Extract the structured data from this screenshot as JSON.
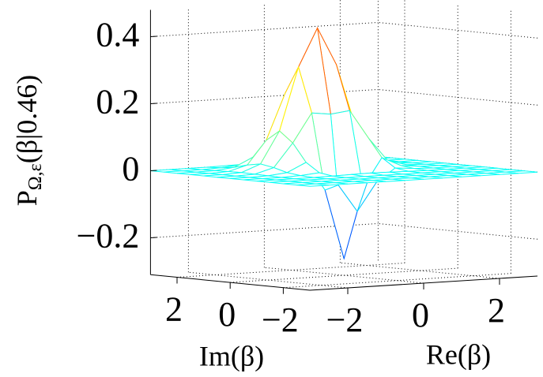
{
  "chart_data": {
    "type": "mesh",
    "colormap": "jet",
    "grid": true,
    "xlabel": "Re(β)",
    "ylabel": "Im(β)",
    "zlabel": {
      "main": "P",
      "sub": "Ω,ε",
      "rest": "(β|0.46)"
    },
    "xlim": [
      -3,
      3
    ],
    "ylim": [
      -3,
      3
    ],
    "zlim": [
      -0.31,
      0.48
    ],
    "xticks": [
      {
        "value": -2,
        "label": "−2"
      },
      0,
      2
    ],
    "yticks": [
      {
        "value": -2,
        "label": "−2"
      },
      0,
      2
    ],
    "zticks": [
      {
        "value": -0.2,
        "label": "−0.2"
      },
      0,
      0.2,
      0.4
    ],
    "x": [
      -3,
      -2.5,
      -2,
      -1.5,
      -1,
      -0.5,
      0,
      0.5,
      1,
      1.5,
      2,
      2.5,
      3
    ],
    "y": [
      -3,
      -2.5,
      -2,
      -1.5,
      -1,
      -0.5,
      0,
      0.5,
      1,
      1.5,
      2,
      2.5,
      3
    ],
    "z": [
      [
        0,
        0,
        0,
        0,
        0,
        0,
        0,
        0,
        0,
        0,
        0,
        0,
        0
      ],
      [
        0,
        0,
        0,
        0,
        0,
        0,
        0,
        0,
        0,
        0,
        0,
        0,
        0
      ],
      [
        0,
        0,
        0,
        0,
        0,
        0,
        0,
        0,
        0,
        0,
        0,
        0,
        0
      ],
      [
        0,
        0,
        0,
        0,
        0,
        0,
        0,
        0,
        0,
        0,
        0,
        0,
        0
      ],
      [
        0,
        0,
        0,
        0,
        0.001,
        0.002,
        0.003,
        0.002,
        0.001,
        0,
        0,
        0,
        0
      ],
      [
        0,
        0,
        0,
        0.002,
        0.007,
        -0.033,
        -0.115,
        -0.033,
        0.007,
        0.002,
        0,
        0,
        0
      ],
      [
        0,
        0,
        0.001,
        0.007,
        0.034,
        -0.052,
        -0.26,
        -0.052,
        0.034,
        0.007,
        0.001,
        0,
        0
      ],
      [
        0,
        0,
        0.002,
        0.018,
        0.088,
        0.174,
        0.167,
        0.174,
        0.088,
        0.018,
        0.002,
        0,
        0
      ],
      [
        0,
        0,
        0.003,
        0.025,
        0.12,
        0.307,
        0.42,
        0.307,
        0.12,
        0.025,
        0.003,
        0,
        0
      ],
      [
        0,
        0,
        0.002,
        0.018,
        0.088,
        0.225,
        0.307,
        0.225,
        0.088,
        0.018,
        0.002,
        0,
        0
      ],
      [
        0,
        0,
        0.001,
        0.007,
        0.034,
        0.088,
        0.12,
        0.088,
        0.034,
        0.007,
        0.001,
        0,
        0
      ],
      [
        0,
        0,
        0,
        0.002,
        0.007,
        0.018,
        0.025,
        0.018,
        0.007,
        0.002,
        0,
        0,
        0
      ],
      [
        0,
        0,
        0,
        0,
        0.001,
        0.002,
        0.003,
        0.002,
        0.001,
        0,
        0,
        0,
        0
      ]
    ]
  }
}
